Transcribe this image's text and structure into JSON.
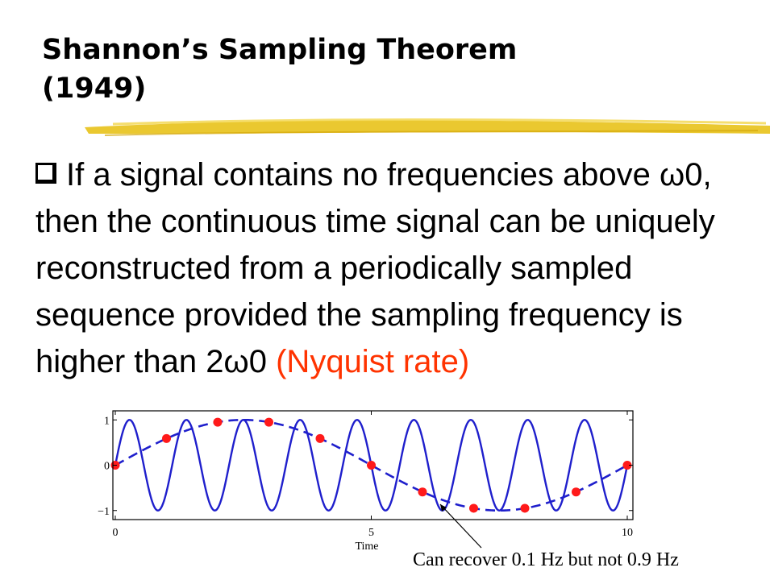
{
  "slide": {
    "title": "Shannon’s Sampling Theorem\n(1949)",
    "bullet": {
      "icon": "checkbox-square-bullet",
      "text_main": "If a signal contains no frequencies above ω0, then the continuous time signal can be uniquely reconstructed from a periodically sampled sequence provided the sampling frequency is higher than 2ω0 ",
      "text_highlight": "(Nyquist rate)"
    },
    "caption": "Can recover 0.1 Hz but not 0.9 Hz"
  },
  "colors": {
    "signal": "#1f1fcc",
    "samples": "#ff1a1a",
    "highlight": "#ff3300",
    "swoosh": "#e8c21a"
  },
  "chart_data": {
    "type": "line",
    "xlabel": "Time",
    "ylabel": "",
    "x_ticks": [
      "0",
      "5",
      "10"
    ],
    "y_ticks": [
      "1",
      "0",
      "−1"
    ],
    "xlim": [
      0,
      10
    ],
    "ylim": [
      -1.2,
      1.2
    ],
    "series": [
      {
        "style": "solid",
        "frequency_hz": 0.9,
        "x": [
          0,
          10
        ]
      },
      {
        "style": "dashed",
        "frequency_hz": 0.1,
        "x": [
          0,
          10
        ]
      }
    ],
    "samples": {
      "x": [
        0,
        1,
        2,
        3,
        4,
        5,
        6,
        7,
        8,
        9,
        10
      ],
      "y": [
        0,
        0.59,
        0.95,
        0.95,
        0.59,
        0,
        -0.59,
        -0.95,
        -0.95,
        -0.59,
        0
      ]
    }
  }
}
